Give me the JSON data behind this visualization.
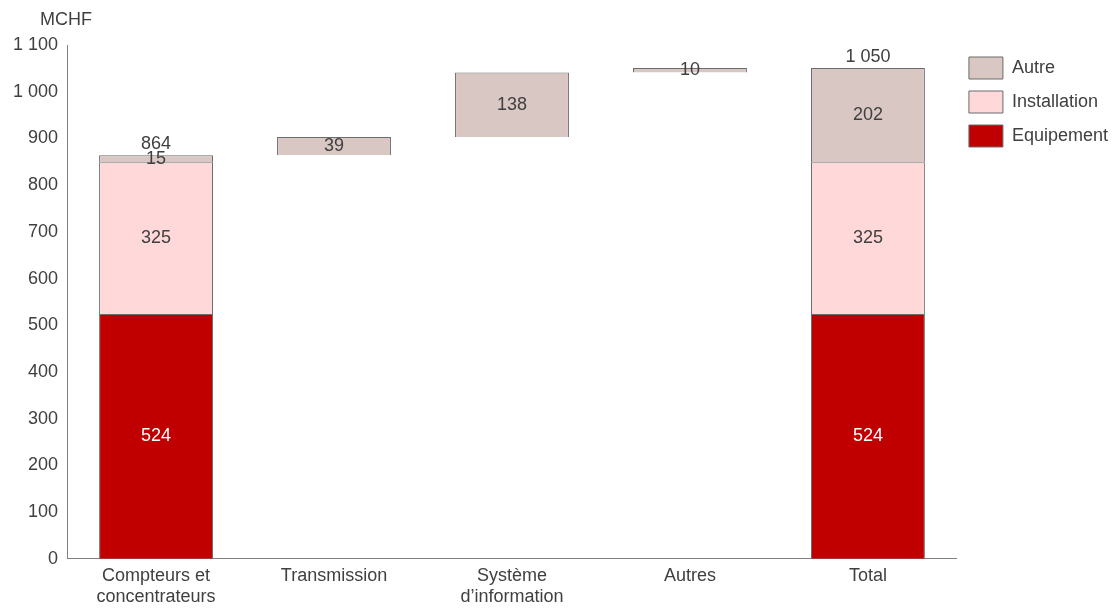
{
  "chart_data": {
    "type": "bar",
    "ylabel": "MCHF",
    "categories": [
      "Compteurs et concentrateurs",
      "Transmission",
      "Système d’information",
      "Autres",
      "Total"
    ],
    "series": [
      {
        "name": "Autre",
        "color": "#d9c7c4",
        "values": [
          15,
          39,
          138,
          10,
          202
        ],
        "base": [
          849,
          864,
          903,
          1041,
          849
        ]
      },
      {
        "name": "Installation",
        "color": "#ffd9d9",
        "values": [
          325,
          null,
          null,
          null,
          325
        ],
        "base": [
          524,
          null,
          null,
          null,
          524
        ]
      },
      {
        "name": "Equipement",
        "color": "#c00000",
        "values": [
          524,
          null,
          null,
          null,
          524
        ],
        "base": [
          0,
          null,
          null,
          null,
          0
        ]
      }
    ],
    "totals": [
      "864",
      null,
      null,
      null,
      "1 050"
    ],
    "ylim": [
      0,
      1100
    ],
    "yticks": [
      0,
      100,
      200,
      300,
      400,
      500,
      600,
      700,
      800,
      900,
      {
        "value": 1000,
        "label": "1 000"
      },
      {
        "value": 1100,
        "label": "1 100"
      }
    ],
    "data_labels": true,
    "grid": false,
    "legend": "top right"
  }
}
